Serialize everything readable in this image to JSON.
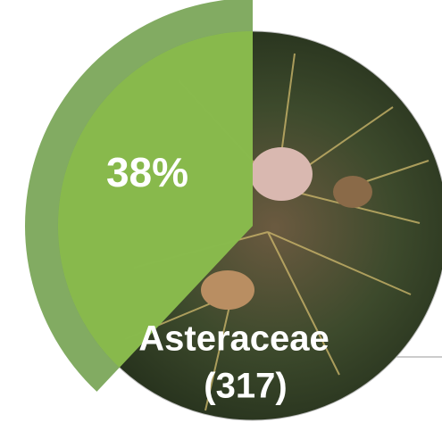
{
  "chart_data": {
    "type": "pie",
    "categories": [
      "Asteraceae"
    ],
    "values": [
      38
    ],
    "value_labels": [
      "38%"
    ],
    "counts": [
      317
    ],
    "count_labels": [
      "(317)"
    ],
    "colors": [
      "#7ba65a",
      "#8cbf4a"
    ]
  }
}
